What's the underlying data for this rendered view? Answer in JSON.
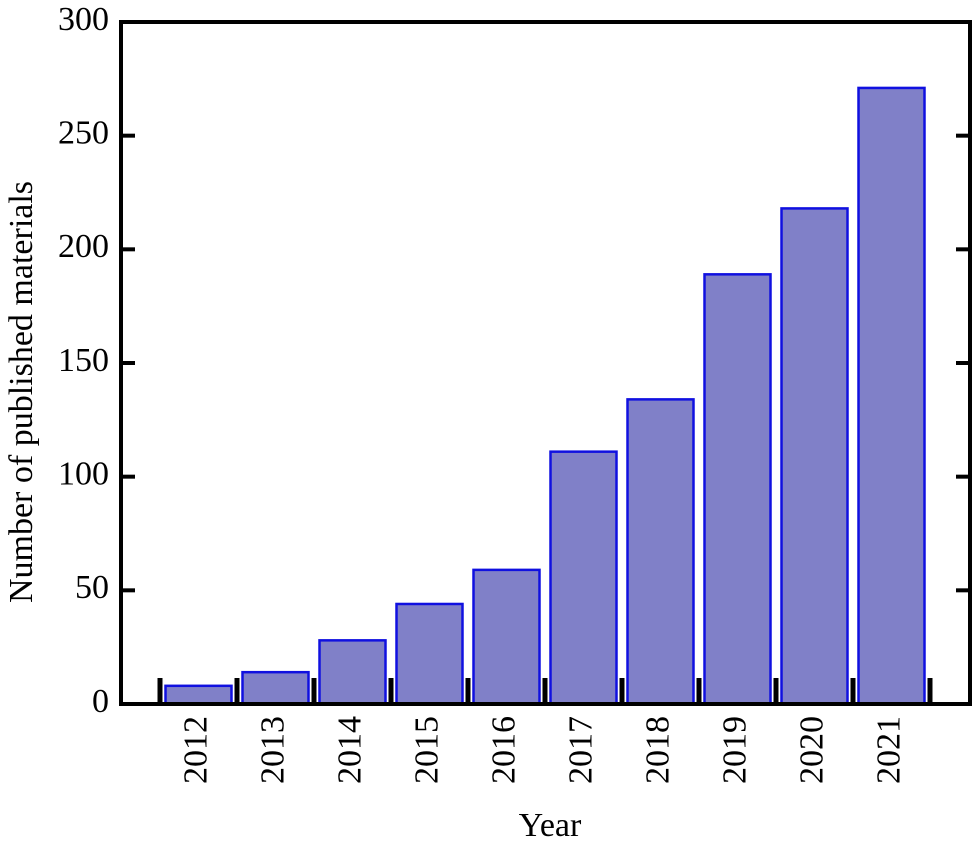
{
  "chart_data": {
    "type": "bar",
    "x_label": "Year",
    "y_label": "Number of published materials",
    "categories": [
      "2012",
      "2013",
      "2014",
      "2015",
      "2016",
      "2017",
      "2018",
      "2019",
      "2020",
      "2021"
    ],
    "values": [
      8,
      14,
      28,
      44,
      59,
      111,
      134,
      189,
      218,
      271
    ],
    "color": "#8080c8",
    "edge_color": "#1010e0",
    "ylim": [
      0,
      300
    ],
    "yticks": [
      0,
      50,
      100,
      150,
      200,
      250,
      300
    ]
  }
}
